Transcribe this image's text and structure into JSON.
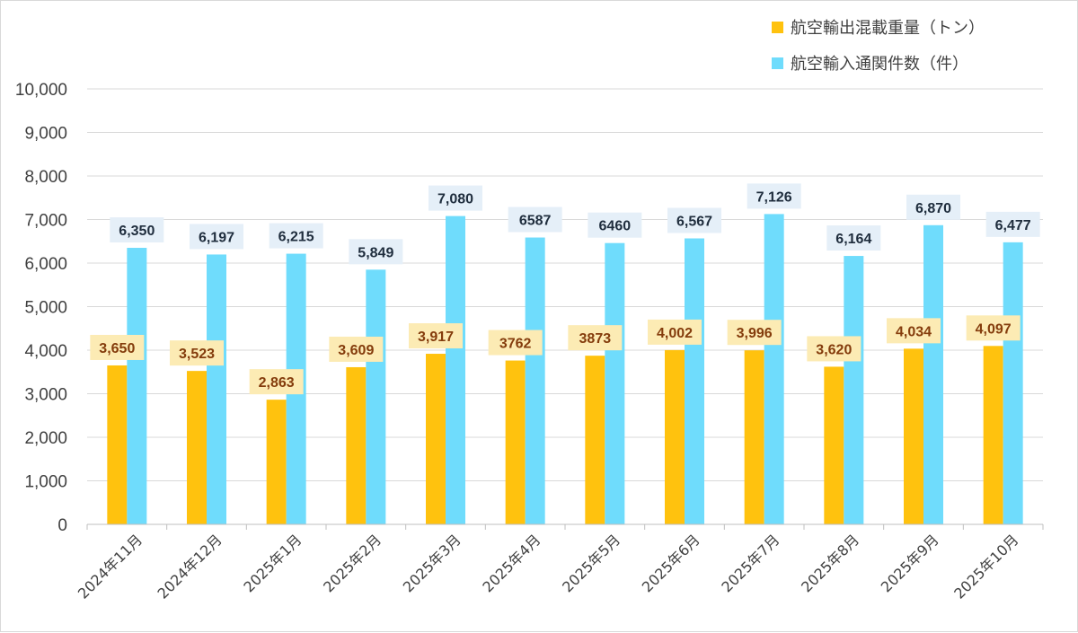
{
  "colors": {
    "series1": "#FFC20E",
    "series2": "#6FDCFC",
    "label1_bg": "#FCEBB4",
    "label1_text": "#843C0C",
    "label2_bg": "#E5EFF8",
    "label2_text": "#1F2D3D",
    "grid": "#D9D9D9",
    "axis": "#BFBFBF"
  },
  "chart_data": {
    "type": "bar",
    "categories": [
      "2024年11月",
      "2024年12月",
      "2025年1月",
      "2025年2月",
      "2025年3月",
      "2025年4月",
      "2025年5月",
      "2025年6月",
      "2025年7月",
      "2025年8月",
      "2025年9月",
      "2025年10月"
    ],
    "series": [
      {
        "name": "航空輸出混載重量（トン）",
        "values": [
          3650,
          3523,
          2863,
          3609,
          3917,
          3762,
          3873,
          4002,
          3996,
          3620,
          4034,
          4097
        ],
        "labels": [
          "3,650",
          "3,523",
          "2,863",
          "3,609",
          "3,917",
          "3762",
          "3873",
          "4,002",
          "3,996",
          "3,620",
          "4,034",
          "4,097"
        ]
      },
      {
        "name": "航空輸入通関件数（件）",
        "values": [
          6350,
          6197,
          6215,
          5849,
          7080,
          6587,
          6460,
          6567,
          7126,
          6164,
          6870,
          6477
        ],
        "labels": [
          "6,350",
          "6,197",
          "6,215",
          "5,849",
          "7,080",
          "6587",
          "6460",
          "6,567",
          "7,126",
          "6,164",
          "6,870",
          "6,477"
        ]
      }
    ],
    "ylim": [
      0,
      10000
    ],
    "yticks": [
      0,
      1000,
      2000,
      3000,
      4000,
      5000,
      6000,
      7000,
      8000,
      9000,
      10000
    ],
    "ytick_labels": [
      "0",
      "1,000",
      "2,000",
      "3,000",
      "4,000",
      "5,000",
      "6,000",
      "7,000",
      "8,000",
      "9,000",
      "10,000"
    ],
    "grid": true,
    "legend_position": "top-right",
    "title": "",
    "xlabel": "",
    "ylabel": ""
  }
}
